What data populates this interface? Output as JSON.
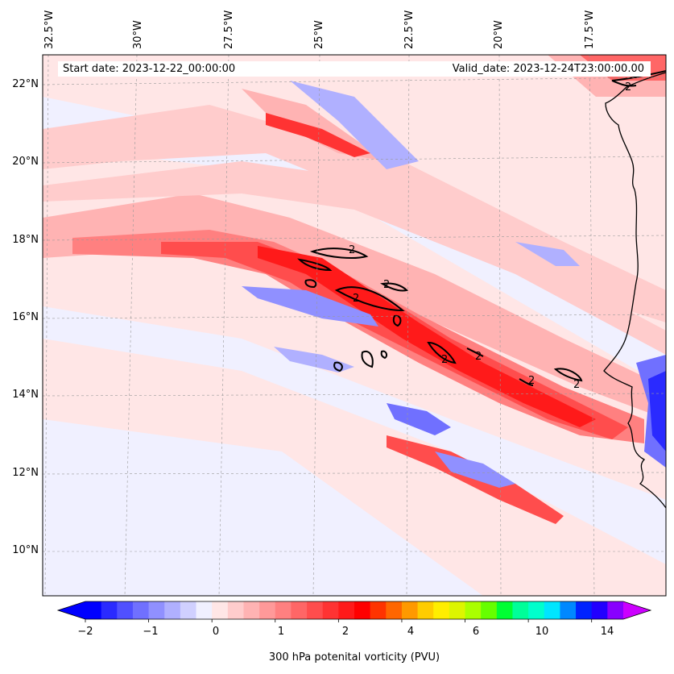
{
  "header": {
    "start_date": "Start date: 2023-12-22_00:00:00",
    "valid_date": "Valid_date: 2023-12-24T23:00:00.00"
  },
  "axes": {
    "lon_labels": [
      "32.5°W",
      "30°W",
      "27.5°W",
      "25°W",
      "22.5°W",
      "20°W",
      "17.5°W"
    ],
    "lat_labels": [
      "22°N",
      "20°N",
      "18°N",
      "16°N",
      "14°N",
      "12°N",
      "10°N"
    ],
    "lon_range": [
      -33,
      -15.7
    ],
    "lat_range": [
      8.9,
      22.8
    ],
    "gridlines": true
  },
  "contours": {
    "level_label": "2",
    "color": "#000000"
  },
  "colorbar": {
    "title": "300 hPa potenital vorticity (PVU)",
    "tick_labels": [
      "−2",
      "−1",
      "0",
      "1",
      "2",
      "4",
      "6",
      "10",
      "14"
    ],
    "colors": [
      "#0000ff",
      "#2a2aff",
      "#5050ff",
      "#7070ff",
      "#9090ff",
      "#b0b0ff",
      "#d0d0ff",
      "#f0f0ff",
      "#ffe6e6",
      "#ffcccc",
      "#ffb3b3",
      "#ff9999",
      "#ff8080",
      "#ff6666",
      "#ff4d4d",
      "#ff3333",
      "#ff1a1a",
      "#ff0000",
      "#ff3300",
      "#ff6600",
      "#ff9900",
      "#ffcc00",
      "#ffee00",
      "#ddf500",
      "#aaff00",
      "#66ff00",
      "#00ff33",
      "#00ff99",
      "#00ffcc",
      "#00e5ff",
      "#0088ff",
      "#0022ff",
      "#2200ff",
      "#8800ff"
    ],
    "extend_min_color": "#0000ff",
    "extend_max_color": "#cc00ff"
  }
}
